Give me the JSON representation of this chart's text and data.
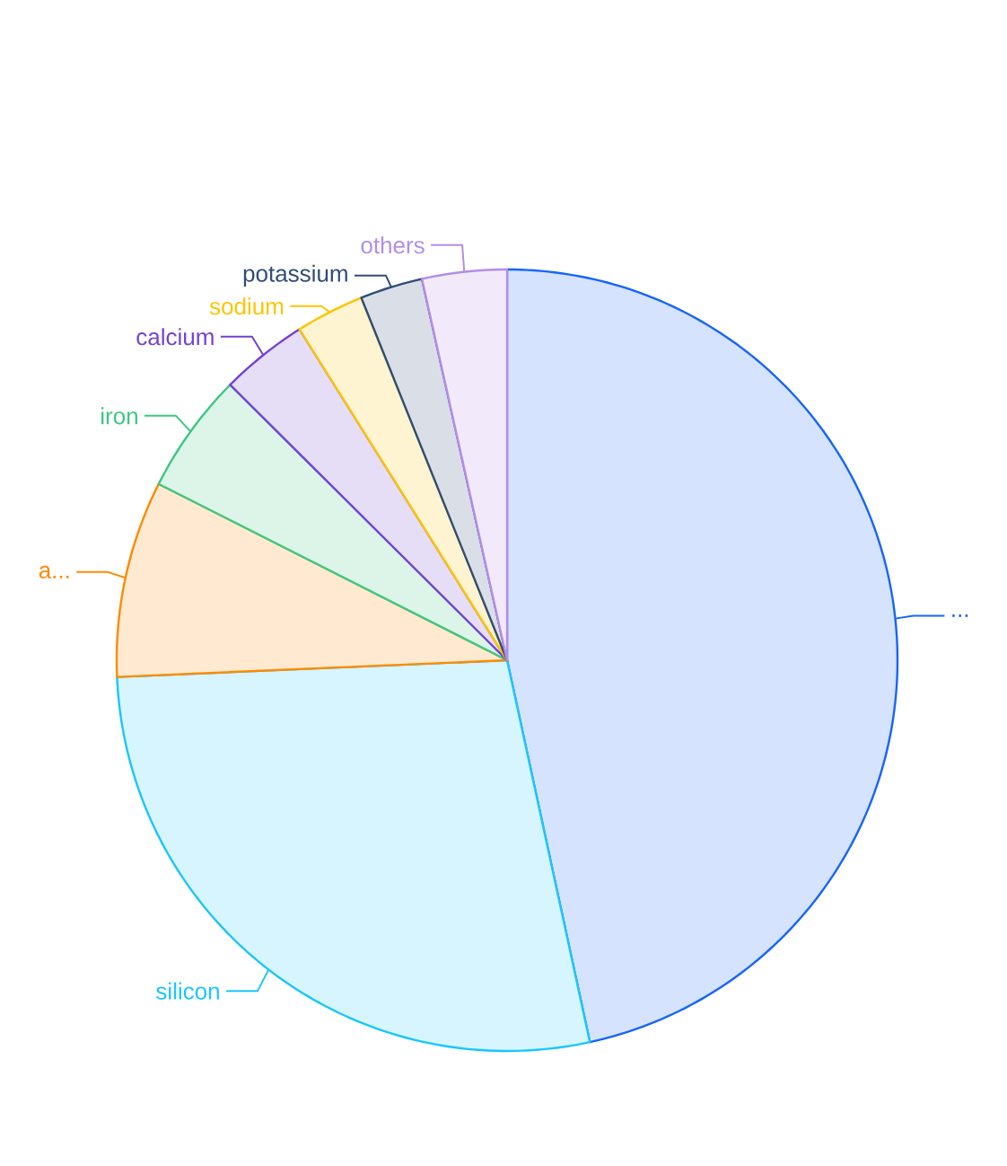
{
  "chart_data": {
    "type": "pie",
    "categories": [
      "...",
      "silicon",
      "a...",
      "iron",
      "calcium",
      "sodium",
      "potassium",
      "others"
    ],
    "values": [
      46.6,
      27.72,
      8.13,
      5,
      3.63,
      2.83,
      2.59,
      3.5
    ],
    "colors": [
      "#1664ff",
      "#1ac6ff",
      "#ff8a00",
      "#3cc780",
      "#7442d4",
      "#ffc400",
      "#304d77",
      "#b48deb"
    ]
  }
}
